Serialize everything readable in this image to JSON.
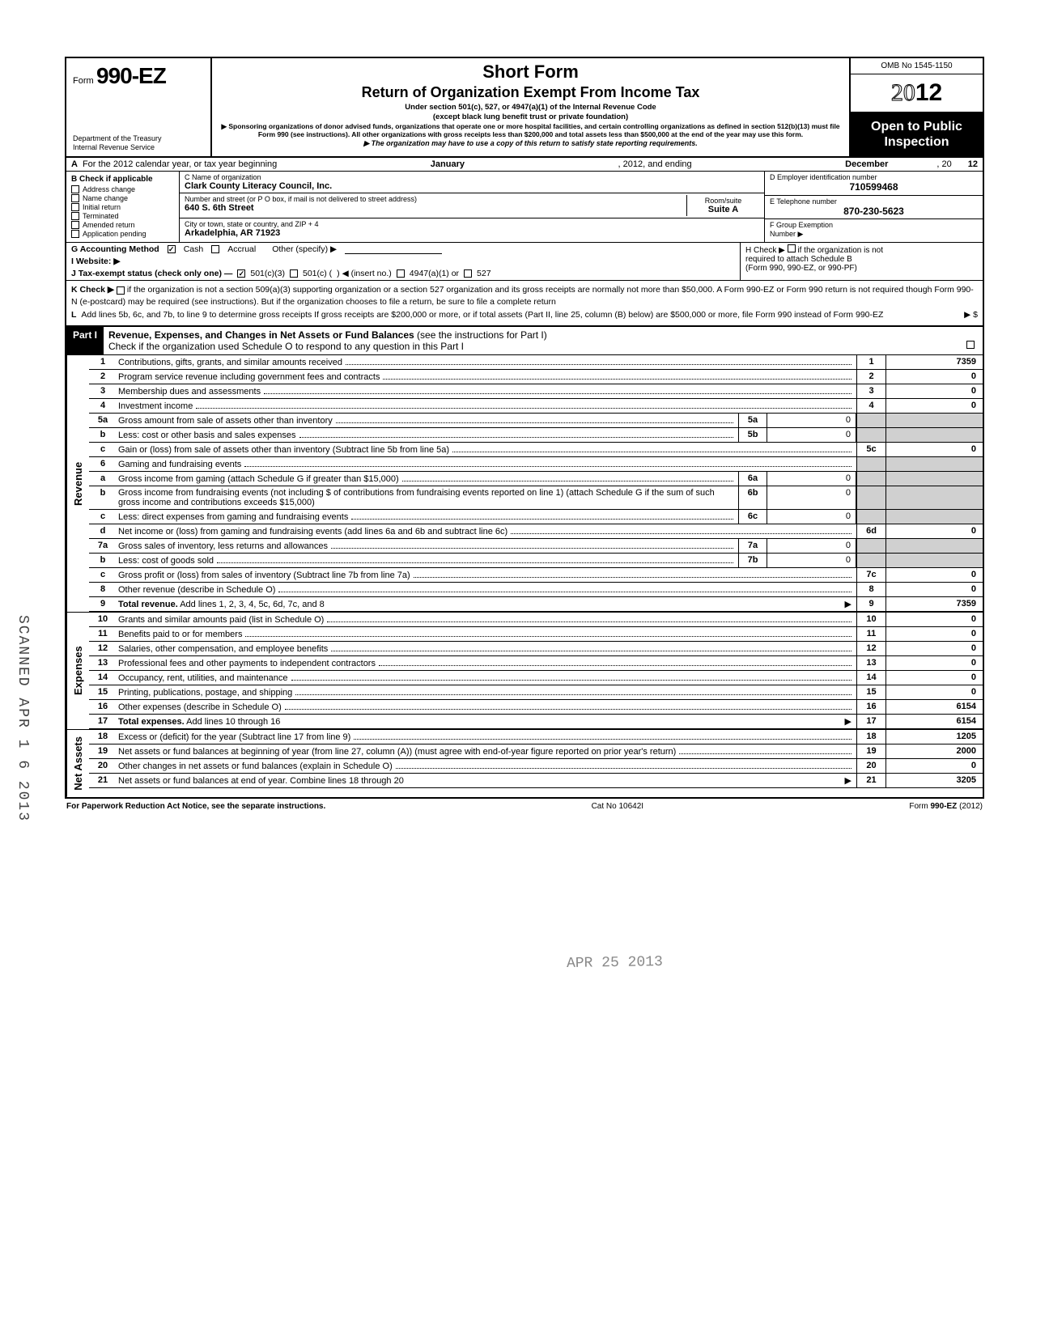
{
  "header": {
    "form_label": "Form",
    "form_number": "990-EZ",
    "dept1": "Department of the Treasury",
    "dept2": "Internal Revenue Service",
    "short_form": "Short Form",
    "title": "Return of Organization Exempt From Income Tax",
    "under1": "Under section 501(c), 527, or 4947(a)(1) of the Internal Revenue Code",
    "under2": "(except black lung benefit trust or private foundation)",
    "sponsor": "▶ Sponsoring organizations of donor advised funds, organizations that operate one or more hospital facilities, and certain controlling organizations as defined in section 512(b)(13) must file Form 990 (see instructions). All other organizations with gross receipts less than $200,000 and total assets less than $500,000 at the end of the year may use this form.",
    "copy_line": "▶ The organization may have to use a copy of this return to satisfy state reporting requirements.",
    "omb": "OMB No 1545-1150",
    "year_prefix": "20",
    "year_suffix": "12",
    "open1": "Open to Public",
    "open2": "Inspection"
  },
  "rowA": {
    "label": "A",
    "text1": "For the 2012 calendar year, or tax year beginning",
    "month1": "January",
    "text2": ", 2012, and ending",
    "month2": "December",
    "text3": ", 20",
    "yy": "12"
  },
  "B": {
    "head": "B  Check if applicable",
    "items": [
      "Address change",
      "Name change",
      "Initial return",
      "Terminated",
      "Amended return",
      "Application pending"
    ]
  },
  "C": {
    "name_label": "C  Name of organization",
    "name": "Clark County Literacy Council, Inc.",
    "street_label": "Number and street (or P O  box, if mail is not delivered to street address)",
    "room_label": "Room/suite",
    "street": "640 S. 6th Street",
    "suite": "Suite A",
    "city_label": "City or town, state or country, and ZIP + 4",
    "city": "Arkadelphia, AR 71923"
  },
  "D": {
    "d_label": "D Employer identification number",
    "d_val": "710599468",
    "e_label": "E  Telephone number",
    "e_val": "870-230-5623",
    "f_label": "F  Group Exemption",
    "f_label2": "Number  ▶"
  },
  "G": {
    "label": "G  Accounting Method",
    "cash": "Cash",
    "accrual": "Accrual",
    "other": "Other (specify) ▶"
  },
  "H": {
    "text1": "H  Check ▶",
    "text2": "if the organization is not",
    "text3": "required to attach Schedule B",
    "text4": "(Form 990, 990-EZ, or 990-PF)"
  },
  "I": {
    "label": "I   Website: ▶"
  },
  "J": {
    "label": "J  Tax-exempt status (check only one) —",
    "o1": "501(c)(3)",
    "o2": "501(c) (",
    "insert": ") ◀ (insert no.)",
    "o3": "4947(a)(1) or",
    "o4": "527"
  },
  "K": {
    "label": "K  Check ▶",
    "text": "if the organization is not a section 509(a)(3) supporting organization or a section 527 organization and its gross receipts are normally not more than $50,000. A Form 990-EZ or Form 990 return is not required though Form 990-N (e-postcard) may be required (see instructions). But if the organization chooses to file a return, be sure to file a complete return"
  },
  "L": {
    "label": "L",
    "text": "Add lines 5b, 6c, and 7b, to line 9 to determine gross receipts  If gross receipts are $200,000 or more, or if total assets (Part II, line 25, column (B) below) are $500,000 or more, file Form 990 instead of Form 990-EZ",
    "arrow": "▶  $"
  },
  "part1": {
    "label": "Part I",
    "title_bold": "Revenue, Expenses, and Changes in Net Assets or Fund Balances",
    "title_rest": " (see the instructions for Part I)",
    "sub": "Check if the organization used Schedule O to respond to any question in this Part I"
  },
  "sections": {
    "revenue": "Revenue",
    "expenses": "Expenses",
    "net": "Net Assets"
  },
  "lines": [
    {
      "n": "1",
      "t": "Contributions, gifts, grants, and similar amounts received",
      "box": "1",
      "val": "7359"
    },
    {
      "n": "2",
      "t": "Program service revenue including government fees and contracts",
      "box": "2",
      "val": "0"
    },
    {
      "n": "3",
      "t": "Membership dues and assessments",
      "box": "3",
      "val": "0"
    },
    {
      "n": "4",
      "t": "Investment income",
      "box": "4",
      "val": "0"
    },
    {
      "n": "5a",
      "t": "Gross amount from sale of assets other than inventory",
      "mbox": "5a",
      "mval": "0"
    },
    {
      "n": "b",
      "t": "Less: cost or other basis and sales expenses",
      "mbox": "5b",
      "mval": "0"
    },
    {
      "n": "c",
      "t": "Gain or (loss) from sale of assets other than inventory (Subtract line 5b from line 5a)",
      "box": "5c",
      "val": "0"
    },
    {
      "n": "6",
      "t": "Gaming and fundraising events"
    },
    {
      "n": "a",
      "t": "Gross income from gaming (attach Schedule G if greater than $15,000)",
      "mbox": "6a",
      "mval": "0"
    },
    {
      "n": "b",
      "t": "Gross income from fundraising events (not including  $                     of contributions from fundraising events reported on line 1) (attach Schedule G if the sum of such gross income and contributions exceeds $15,000)",
      "mbox": "6b",
      "mval": "0",
      "under": "0"
    },
    {
      "n": "c",
      "t": "Less: direct expenses from gaming and fundraising events",
      "mbox": "6c",
      "mval": "0"
    },
    {
      "n": "d",
      "t": "Net income or (loss) from gaming and fundraising events (add lines 6a and 6b and subtract line 6c)",
      "box": "6d",
      "val": "0"
    },
    {
      "n": "7a",
      "t": "Gross sales of inventory, less returns and allowances",
      "mbox": "7a",
      "mval": "0"
    },
    {
      "n": "b",
      "t": "Less: cost of goods sold",
      "mbox": "7b",
      "mval": "0"
    },
    {
      "n": "c",
      "t": "Gross profit or (loss) from sales of inventory (Subtract line 7b from line 7a)",
      "box": "7c",
      "val": "0"
    },
    {
      "n": "8",
      "t": "Other revenue (describe in Schedule O)",
      "box": "8",
      "val": "0"
    },
    {
      "n": "9",
      "t": "Total revenue. Add lines 1, 2, 3, 4, 5c, 6d, 7c, and 8",
      "box": "9",
      "val": "7359",
      "bold": true,
      "arrow": true
    }
  ],
  "exp_lines": [
    {
      "n": "10",
      "t": "Grants and similar amounts paid (list in Schedule O)",
      "box": "10",
      "val": "0"
    },
    {
      "n": "11",
      "t": "Benefits paid to or for members",
      "box": "11",
      "val": "0"
    },
    {
      "n": "12",
      "t": "Salaries, other compensation, and employee benefits",
      "box": "12",
      "val": "0"
    },
    {
      "n": "13",
      "t": "Professional fees and other payments to independent contractors",
      "box": "13",
      "val": "0"
    },
    {
      "n": "14",
      "t": "Occupancy, rent, utilities, and maintenance",
      "box": "14",
      "val": "0"
    },
    {
      "n": "15",
      "t": "Printing, publications, postage, and shipping",
      "box": "15",
      "val": "0"
    },
    {
      "n": "16",
      "t": "Other expenses (describe in Schedule O)",
      "box": "16",
      "val": "6154"
    },
    {
      "n": "17",
      "t": "Total expenses. Add lines 10 through 16",
      "box": "17",
      "val": "6154",
      "bold": true,
      "arrow": true
    }
  ],
  "net_lines": [
    {
      "n": "18",
      "t": "Excess or (deficit) for the year (Subtract line 17 from line 9)",
      "box": "18",
      "val": "1205"
    },
    {
      "n": "19",
      "t": "Net assets or fund balances at beginning of year (from line 27, column (A)) (must agree with end-of-year figure reported on prior year's return)",
      "box": "19",
      "val": "2000"
    },
    {
      "n": "20",
      "t": "Other changes in net assets or fund balances (explain in Schedule O)",
      "box": "20",
      "val": "0"
    },
    {
      "n": "21",
      "t": "Net assets or fund balances at end of year. Combine lines 18 through 20",
      "box": "21",
      "val": "3205",
      "arrow": true
    }
  ],
  "footer": {
    "left": "For Paperwork Reduction Act Notice, see the separate instructions.",
    "center": "Cat No  10642I",
    "right": "Form 990-EZ (2012)"
  },
  "stamp": {
    "scanned": "SCANNED APR 1 6 2013",
    "received": "APR 25 2013"
  }
}
